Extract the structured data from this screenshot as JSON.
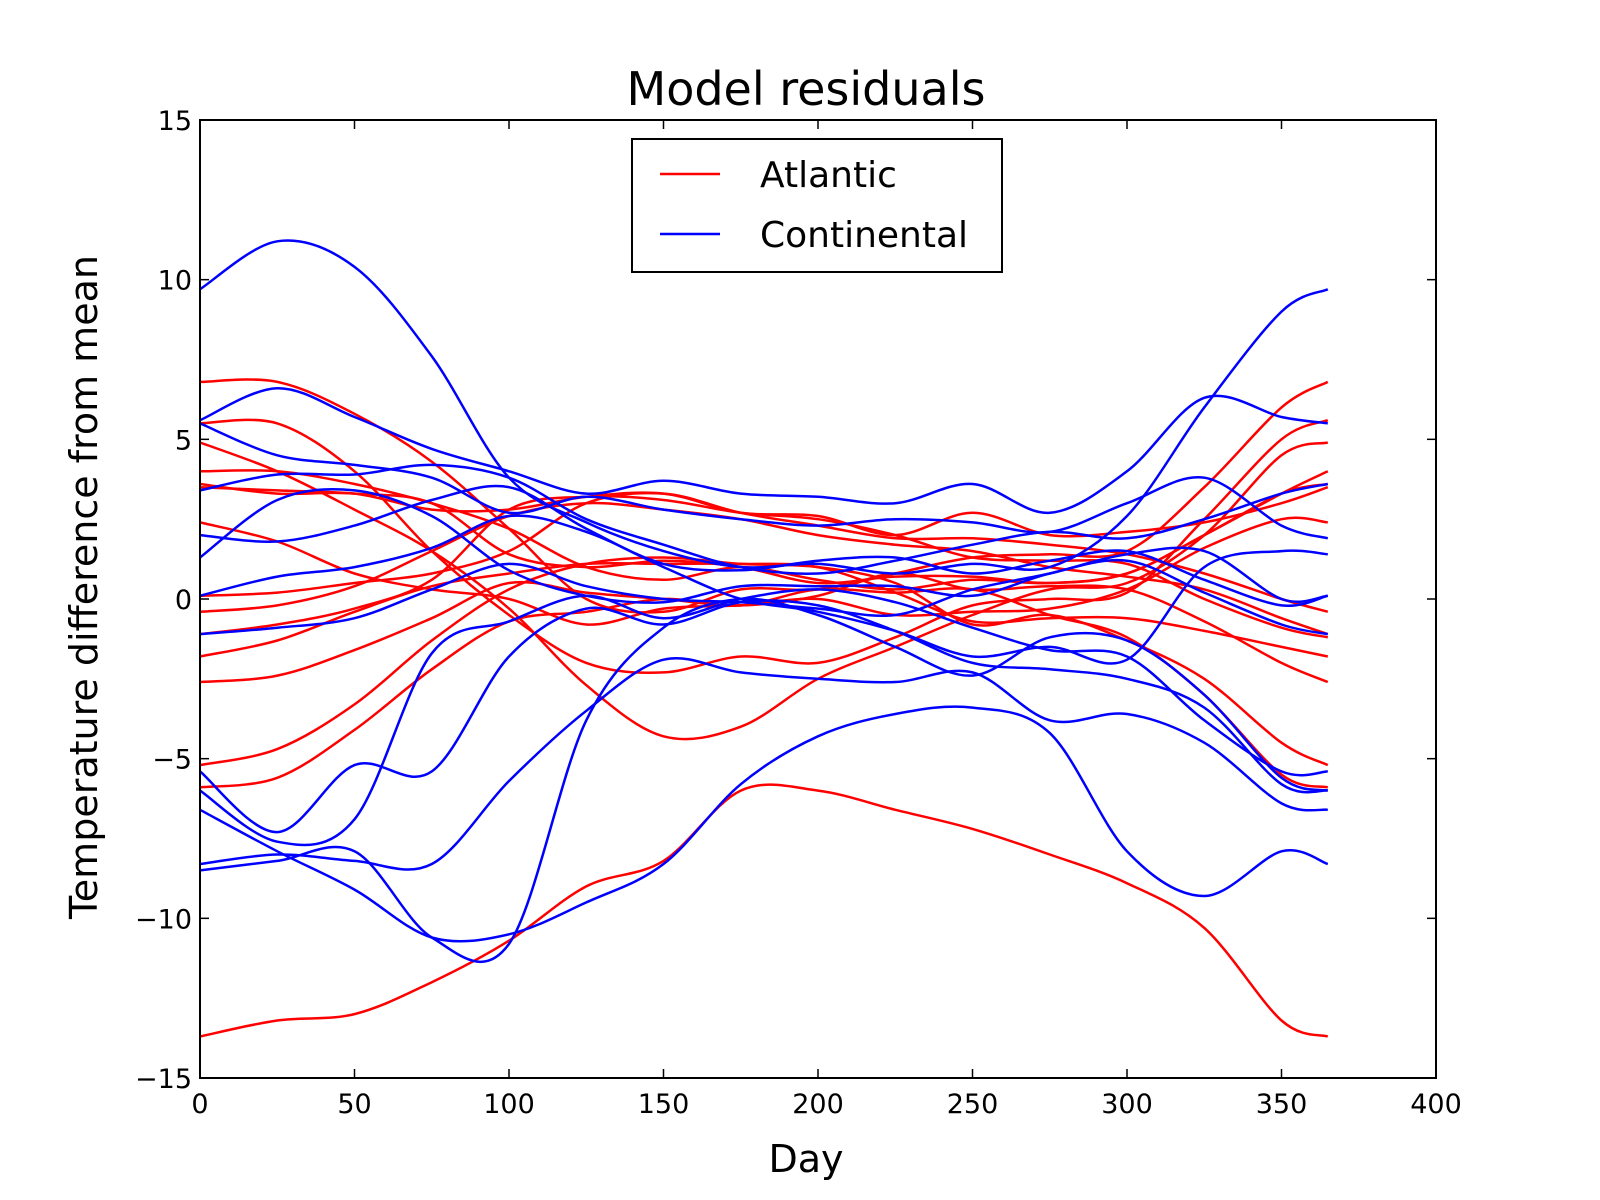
{
  "chart_data": {
    "type": "line",
    "title": "Model residuals",
    "xlabel": "Day",
    "ylabel": "Temperature difference from mean",
    "xlim": [
      0,
      400
    ],
    "ylim": [
      -15,
      15
    ],
    "xticks": [
      0,
      50,
      100,
      150,
      200,
      250,
      300,
      350,
      400
    ],
    "yticks": [
      -15,
      -10,
      -5,
      0,
      5,
      10,
      15
    ],
    "xtick_labels": [
      "0",
      "50",
      "100",
      "150",
      "200",
      "250",
      "300",
      "350",
      "400"
    ],
    "ytick_labels": [
      "−15",
      "−10",
      "−5",
      "0",
      "5",
      "10",
      "15"
    ],
    "grid": false,
    "legend": {
      "position": "top-center",
      "entries": [
        {
          "label": "Atlantic",
          "color": "#ff0000"
        },
        {
          "label": "Continental",
          "color": "#0000ff"
        }
      ]
    },
    "colors": {
      "Atlantic": "#ff0000",
      "Continental": "#0000ff"
    },
    "x": [
      0,
      25,
      50,
      75,
      100,
      125,
      150,
      175,
      200,
      225,
      250,
      275,
      300,
      325,
      350,
      365
    ],
    "series": [
      {
        "group": "Atlantic",
        "values": [
          6.8,
          6.8,
          5.8,
          4.3,
          2.2,
          0.0,
          -0.4,
          0.3,
          0.3,
          0.8,
          1.3,
          1.4,
          1.5,
          3.5,
          6.0,
          6.8
        ]
      },
      {
        "group": "Atlantic",
        "values": [
          5.5,
          5.5,
          4.0,
          1.5,
          -0.5,
          -2.0,
          -2.3,
          -1.8,
          -2.0,
          -1.2,
          -0.2,
          0.0,
          0.2,
          2.5,
          5.0,
          5.6
        ]
      },
      {
        "group": "Atlantic",
        "values": [
          4.9,
          4.0,
          2.8,
          1.5,
          -0.3,
          -2.7,
          -4.3,
          -4.0,
          -2.5,
          -1.5,
          -0.5,
          0.3,
          0.5,
          2.0,
          4.5,
          4.9
        ]
      },
      {
        "group": "Atlantic",
        "values": [
          4.0,
          4.0,
          3.6,
          3.0,
          2.2,
          1.0,
          0.6,
          1.0,
          0.6,
          0.3,
          0.6,
          0.5,
          0.8,
          2.0,
          3.3,
          4.0
        ]
      },
      {
        "group": "Atlantic",
        "values": [
          3.6,
          3.3,
          3.3,
          2.8,
          2.8,
          3.2,
          3.3,
          2.7,
          2.6,
          2.0,
          2.7,
          2.0,
          2.1,
          2.4,
          3.0,
          3.5
        ]
      },
      {
        "group": "Atlantic",
        "values": [
          3.5,
          3.4,
          3.3,
          3.0,
          1.4,
          1.0,
          1.2,
          1.0,
          0.5,
          0.7,
          0.7,
          0.5,
          0.8,
          2.0,
          3.3,
          3.6
        ]
      },
      {
        "group": "Atlantic",
        "values": [
          2.4,
          1.8,
          0.8,
          0.3,
          0.0,
          -0.8,
          -0.3,
          -0.2,
          0.0,
          -0.5,
          -0.4,
          -0.3,
          0.3,
          1.6,
          2.5,
          2.4
        ]
      },
      {
        "group": "Atlantic",
        "values": [
          0.1,
          0.2,
          0.5,
          0.8,
          1.5,
          3.0,
          3.3,
          2.7,
          2.3,
          1.9,
          1.9,
          1.7,
          1.4,
          0.8,
          0.0,
          -0.4
        ]
      },
      {
        "group": "Atlantic",
        "values": [
          -0.4,
          -0.2,
          0.4,
          1.5,
          2.6,
          3.0,
          2.8,
          2.5,
          2.0,
          1.7,
          1.5,
          1.0,
          0.7,
          0.3,
          -0.6,
          -1.1
        ]
      },
      {
        "group": "Atlantic",
        "values": [
          -1.1,
          -0.8,
          -0.3,
          0.6,
          2.8,
          3.2,
          3.1,
          2.7,
          2.5,
          2.0,
          1.3,
          1.2,
          1.1,
          0.0,
          -0.9,
          -1.2
        ]
      },
      {
        "group": "Atlantic",
        "values": [
          -1.8,
          -1.3,
          -0.4,
          0.4,
          0.8,
          1.1,
          1.1,
          1.1,
          1.0,
          0.2,
          -0.7,
          -0.6,
          -0.6,
          -1.0,
          -1.5,
          -1.8
        ]
      },
      {
        "group": "Atlantic",
        "values": [
          -2.6,
          -2.4,
          -1.6,
          -0.6,
          0.5,
          0.2,
          0.0,
          -0.2,
          0.1,
          0.8,
          0.3,
          0.4,
          0.3,
          -0.7,
          -2.0,
          -2.6
        ]
      },
      {
        "group": "Atlantic",
        "values": [
          -5.2,
          -4.7,
          -3.3,
          -1.3,
          0.3,
          1.1,
          1.3,
          1.1,
          1.0,
          0.5,
          -0.8,
          -0.5,
          -1.3,
          -2.5,
          -4.5,
          -5.2
        ]
      },
      {
        "group": "Atlantic",
        "values": [
          -5.9,
          -5.6,
          -4.1,
          -2.2,
          -0.7,
          -0.4,
          0.0,
          -0.2,
          0.3,
          0.2,
          0.3,
          -0.5,
          -1.2,
          -3.0,
          -5.5,
          -5.9
        ]
      },
      {
        "group": "Atlantic",
        "values": [
          -13.7,
          -13.2,
          -13.0,
          -12.0,
          -10.7,
          -9.0,
          -8.2,
          -6.0,
          -6.0,
          -6.6,
          -7.2,
          -8.0,
          -8.9,
          -10.3,
          -13.2,
          -13.7
        ]
      },
      {
        "group": "Continental",
        "values": [
          9.7,
          11.2,
          10.4,
          7.6,
          3.8,
          2.4,
          1.5,
          1.0,
          1.1,
          0.8,
          1.1,
          1.0,
          2.6,
          6.0,
          9.0,
          9.7
        ]
      },
      {
        "group": "Continental",
        "values": [
          5.6,
          6.6,
          5.7,
          4.7,
          4.0,
          3.3,
          3.7,
          3.3,
          3.2,
          3.0,
          3.6,
          2.7,
          4.0,
          6.3,
          5.7,
          5.5
        ]
      },
      {
        "group": "Continental",
        "values": [
          5.5,
          4.5,
          4.2,
          3.8,
          2.7,
          3.2,
          2.8,
          2.5,
          2.3,
          2.5,
          2.4,
          2.1,
          3.0,
          3.8,
          2.3,
          1.9
        ]
      },
      {
        "group": "Continental",
        "values": [
          3.4,
          3.9,
          3.9,
          4.2,
          3.8,
          2.5,
          1.7,
          1.0,
          0.8,
          1.2,
          1.7,
          2.1,
          1.9,
          2.5,
          3.3,
          3.6
        ]
      },
      {
        "group": "Continental",
        "values": [
          2.0,
          1.8,
          2.3,
          3.1,
          3.5,
          2.2,
          1.1,
          0.9,
          1.2,
          1.3,
          0.8,
          1.2,
          1.5,
          0.6,
          -0.2,
          0.1
        ]
      },
      {
        "group": "Continental",
        "values": [
          1.3,
          3.1,
          3.4,
          2.6,
          0.9,
          0.1,
          -0.1,
          0.4,
          0.4,
          0.4,
          0.1,
          0.8,
          1.2,
          0.2,
          -0.8,
          -1.1
        ]
      },
      {
        "group": "Continental",
        "values": [
          0.1,
          0.7,
          1.0,
          1.6,
          2.6,
          2.1,
          1.0,
          0.0,
          -0.4,
          -1.0,
          -1.8,
          -1.5,
          -1.9,
          1.0,
          1.5,
          1.4
        ]
      },
      {
        "group": "Continental",
        "values": [
          -1.1,
          -0.9,
          -0.6,
          0.3,
          1.1,
          0.4,
          0.0,
          -0.1,
          -0.3,
          -0.5,
          0.3,
          0.8,
          1.4,
          1.5,
          0.0,
          0.1
        ]
      },
      {
        "group": "Continental",
        "values": [
          -5.4,
          -7.3,
          -5.2,
          -5.4,
          -1.8,
          -0.3,
          -0.8,
          -0.1,
          -0.2,
          -1.0,
          -2.0,
          -2.2,
          -2.5,
          -3.4,
          -5.8,
          -6.0
        ]
      },
      {
        "group": "Continental",
        "values": [
          -6.0,
          -7.6,
          -6.9,
          -1.7,
          -0.7,
          0.1,
          -0.6,
          0.0,
          0.3,
          -0.1,
          -0.9,
          -1.6,
          -1.8,
          -3.8,
          -5.4,
          -5.4
        ]
      },
      {
        "group": "Continental",
        "values": [
          -6.6,
          -7.9,
          -9.1,
          -10.6,
          -10.5,
          -9.5,
          -8.3,
          -5.8,
          -4.3,
          -3.6,
          -3.4,
          -4.2,
          -7.9,
          -9.3,
          -7.9,
          -8.3
        ]
      },
      {
        "group": "Continental",
        "values": [
          -8.3,
          -8.0,
          -8.2,
          -8.3,
          -5.7,
          -3.5,
          -1.9,
          -2.3,
          -2.5,
          -2.6,
          -2.3,
          -3.8,
          -3.6,
          -4.5,
          -6.4,
          -6.6
        ]
      },
      {
        "group": "Continental",
        "values": [
          -8.5,
          -8.2,
          -7.9,
          -10.6,
          -10.8,
          -3.8,
          -0.9,
          0.0,
          -0.5,
          -1.5,
          -2.4,
          -1.2,
          -1.3,
          -3.0,
          -5.6,
          -6.0
        ]
      }
    ]
  }
}
